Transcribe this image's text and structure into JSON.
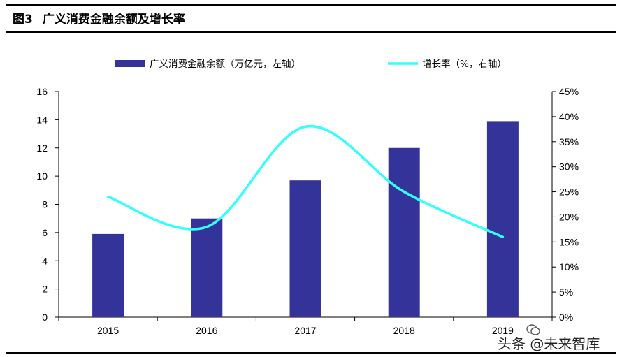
{
  "figure": {
    "number": "图3",
    "title": "广义消费金融余额及增长率"
  },
  "watermark": "头条 @未来智库",
  "colors": {
    "bar": "#333399",
    "line": "#33ffff",
    "axis": "#000000"
  },
  "chart_data": {
    "type": "bar",
    "categories": [
      "2015",
      "2016",
      "2017",
      "2018",
      "2019"
    ],
    "series": [
      {
        "name": "广义消费金融余额（万亿元，左轴）",
        "type": "bar",
        "axis": "left",
        "values": [
          5.9,
          7.0,
          9.7,
          12.0,
          13.9
        ]
      },
      {
        "name": "增长率（%，右轴）",
        "type": "line",
        "axis": "right",
        "values": [
          24,
          18,
          38,
          25,
          16
        ]
      }
    ],
    "y_left": {
      "lim": [
        0,
        16
      ],
      "ticks": [
        "0",
        "2",
        "4",
        "6",
        "8",
        "10",
        "12",
        "14",
        "16"
      ]
    },
    "y_right": {
      "lim": [
        0,
        45
      ],
      "ticks": [
        "0%",
        "5%",
        "10%",
        "15%",
        "20%",
        "25%",
        "30%",
        "35%",
        "40%",
        "45%"
      ]
    },
    "legend_position": "top",
    "grid": false
  }
}
